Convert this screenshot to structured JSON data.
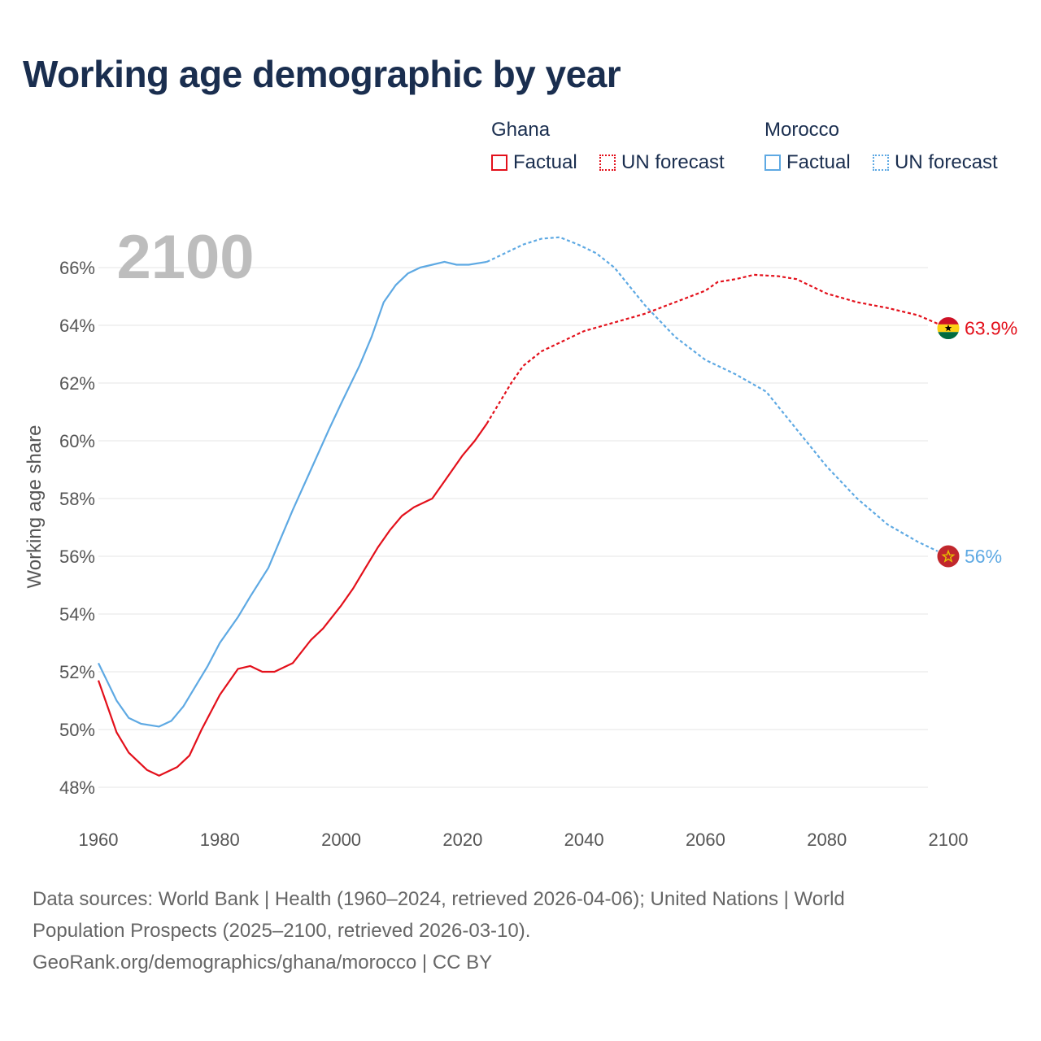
{
  "title": "Working age demographic by year",
  "year_watermark": "2100",
  "legend": {
    "groups": [
      {
        "name": "Ghana",
        "color": "#e3101b",
        "factual_label": "Factual",
        "forecast_label": "UN forecast"
      },
      {
        "name": "Morocco",
        "color": "#5ea9e3",
        "factual_label": "Factual",
        "forecast_label": "UN forecast"
      }
    ]
  },
  "footer": {
    "line1": "Data sources: World Bank | Health (1960–2024, retrieved 2026-04-06); United Nations | World",
    "line2": "Population Prospects (2025–2100, retrieved 2026-03-10).",
    "line3": "GeoRank.org/demographics/ghana/morocco | CC BY"
  },
  "chart_data": {
    "type": "line",
    "title": "Working age demographic by year",
    "xlabel": "",
    "ylabel": "Working age share",
    "xlim": [
      1960,
      2100
    ],
    "ylim": [
      47,
      67.5
    ],
    "xticks": [
      "1960",
      "1980",
      "2000",
      "2020",
      "2040",
      "2060",
      "2080",
      "2100"
    ],
    "yticks": [
      "48%",
      "50%",
      "52%",
      "54%",
      "56%",
      "58%",
      "60%",
      "62%",
      "64%",
      "66%"
    ],
    "forecast_start_year": 2024,
    "grid": true,
    "series": [
      {
        "name": "Ghana",
        "color": "#e3101b",
        "end_label": "63.9%",
        "flag": "ghana",
        "x": [
          1960,
          1963,
          1965,
          1968,
          1970,
          1973,
          1975,
          1977,
          1980,
          1983,
          1985,
          1987,
          1989,
          1992,
          1995,
          1997,
          2000,
          2002,
          2004,
          2006,
          2008,
          2010,
          2012,
          2015,
          2017,
          2020,
          2022,
          2024,
          2026,
          2028,
          2030,
          2033,
          2036,
          2040,
          2045,
          2050,
          2055,
          2060,
          2062,
          2065,
          2068,
          2072,
          2075,
          2078,
          2080,
          2085,
          2090,
          2095,
          2100
        ],
        "values": [
          51.7,
          49.9,
          49.2,
          48.6,
          48.4,
          48.7,
          49.1,
          50.0,
          51.2,
          52.1,
          52.2,
          52.0,
          52.0,
          52.3,
          53.1,
          53.5,
          54.3,
          54.9,
          55.6,
          56.3,
          56.9,
          57.4,
          57.7,
          58.0,
          58.6,
          59.5,
          60.0,
          60.6,
          61.3,
          62.0,
          62.6,
          63.1,
          63.4,
          63.8,
          64.1,
          64.4,
          64.8,
          65.2,
          65.5,
          65.6,
          65.75,
          65.7,
          65.6,
          65.3,
          65.1,
          64.8,
          64.6,
          64.35,
          63.9
        ]
      },
      {
        "name": "Morocco",
        "color": "#5ea9e3",
        "end_label": "56%",
        "flag": "morocco",
        "x": [
          1960,
          1963,
          1965,
          1967,
          1970,
          1972,
          1974,
          1976,
          1978,
          1980,
          1983,
          1985,
          1988,
          1990,
          1992,
          1995,
          1998,
          2000,
          2003,
          2005,
          2007,
          2009,
          2011,
          2013,
          2015,
          2017,
          2019,
          2021,
          2024,
          2027,
          2030,
          2033,
          2036,
          2039,
          2042,
          2045,
          2050,
          2055,
          2060,
          2065,
          2070,
          2075,
          2080,
          2085,
          2090,
          2095,
          2100
        ],
        "values": [
          52.3,
          51.0,
          50.4,
          50.2,
          50.1,
          50.3,
          50.8,
          51.5,
          52.2,
          53.0,
          53.9,
          54.6,
          55.6,
          56.6,
          57.6,
          59.0,
          60.4,
          61.3,
          62.6,
          63.6,
          64.8,
          65.4,
          65.8,
          66.0,
          66.1,
          66.2,
          66.1,
          66.1,
          66.2,
          66.5,
          66.8,
          67.0,
          67.05,
          66.8,
          66.5,
          66.0,
          64.7,
          63.6,
          62.8,
          62.3,
          61.7,
          60.4,
          59.1,
          58.0,
          57.1,
          56.5,
          56.0
        ]
      }
    ]
  }
}
